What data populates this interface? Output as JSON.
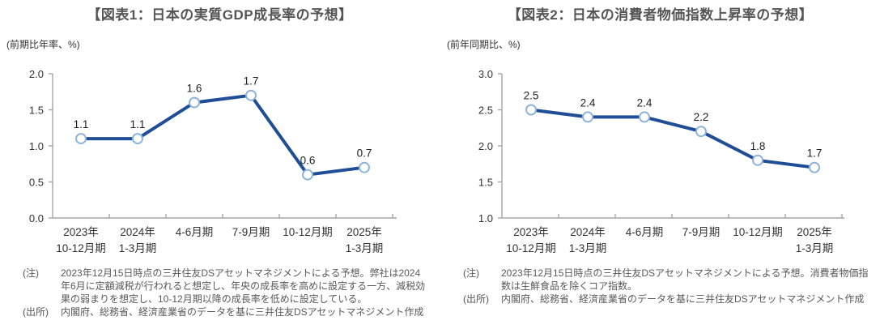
{
  "page": {
    "background": "#FFFFFF",
    "axis_color": "#A6A6A6",
    "title_color": "#555555",
    "note_color": "#595959"
  },
  "chart_data": [
    {
      "type": "line",
      "title": "【図表1：日本の実質GDP成長率の予想】",
      "ylabel": "(前期比年率、%)",
      "xlabel": "",
      "categories": [
        [
          "2023年",
          "10-12月期"
        ],
        [
          "2024年",
          "1-3月期"
        ],
        [
          "4-6月期"
        ],
        [
          "7-9月期"
        ],
        [
          "10-12月期"
        ],
        [
          "2025年",
          "1-3月期"
        ]
      ],
      "values": [
        1.1,
        1.1,
        1.6,
        1.7,
        0.6,
        0.7
      ],
      "point_labels": [
        "1.1",
        "1.1",
        "1.6",
        "1.7",
        "0.6",
        "0.7"
      ],
      "ylim": [
        0.0,
        2.0
      ],
      "yticks": [
        "2.0",
        "1.5",
        "1.0",
        "0.5",
        "0.0"
      ],
      "grid": false,
      "legend": "none",
      "line_color": "#1F4E96",
      "marker_fill": "#FFFFFF",
      "marker_stroke": "#8EB4DC",
      "note_label": "(注)",
      "note_text": "2023年12月15日時点の三井住友DSアセットマネジメントによる予想。弊社は2024年6月に定額減税が行われると想定し、年央の成長率を高めに設定する一方、減税効果の弱まりを想定し、10-12月期以降の成長率を低めに設定している。",
      "source_label": "(出所)",
      "source_text": "内閣府、総務省、経済産業省のデータを基に三井住友DSアセットマネジメント作成"
    },
    {
      "type": "line",
      "title": "【図表2：日本の消費者物価指数上昇率の予想】",
      "ylabel": "(前年同期比、%)",
      "xlabel": "",
      "categories": [
        [
          "2023年",
          "10-12月期"
        ],
        [
          "2024年",
          "1-3月期"
        ],
        [
          "4-6月期"
        ],
        [
          "7-9月期"
        ],
        [
          "10-12月期"
        ],
        [
          "2025年",
          "1-3月期"
        ]
      ],
      "values": [
        2.5,
        2.4,
        2.4,
        2.2,
        1.8,
        1.7
      ],
      "point_labels": [
        "2.5",
        "2.4",
        "2.4",
        "2.2",
        "1.8",
        "1.7"
      ],
      "ylim": [
        1.0,
        3.0
      ],
      "yticks": [
        "3.0",
        "2.5",
        "2.0",
        "1.5",
        "1.0"
      ],
      "grid": false,
      "legend": "none",
      "line_color": "#1F4E96",
      "marker_fill": "#FFFFFF",
      "marker_stroke": "#8EB4DC",
      "note_label": "(注)",
      "note_text": "2023年12月15日時点の三井住友DSアセットマネジメントによる予想。消費者物価指数は生鮮食品を除くコア指数。",
      "source_label": "(出所)",
      "source_text": "内閣府、総務省、経済産業省のデータを基に三井住友DSアセットマネジメント作成"
    }
  ]
}
